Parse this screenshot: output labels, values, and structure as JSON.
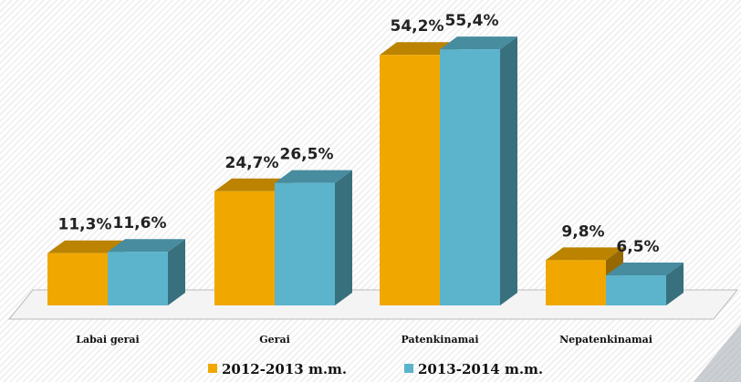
{
  "chart_data": {
    "type": "bar3d",
    "categories": [
      "Labai gerai",
      "Gerai",
      "Patenkinamai",
      "Nepatenkinamai"
    ],
    "series": [
      {
        "name": "2012-2013 m.m.",
        "color": "#f0a800",
        "values": [
          11.3,
          24.7,
          54.2,
          9.8
        ],
        "value_labels": [
          "11,3%",
          "24,7%",
          "54,2%",
          "9,8%"
        ]
      },
      {
        "name": "2013-2014 m.m.",
        "color": "#5bb4cc",
        "values": [
          11.6,
          26.5,
          55.4,
          6.5
        ],
        "value_labels": [
          "11,6%",
          "26,5%",
          "55,4%",
          "6,5%"
        ]
      }
    ],
    "legend": "bottom"
  }
}
